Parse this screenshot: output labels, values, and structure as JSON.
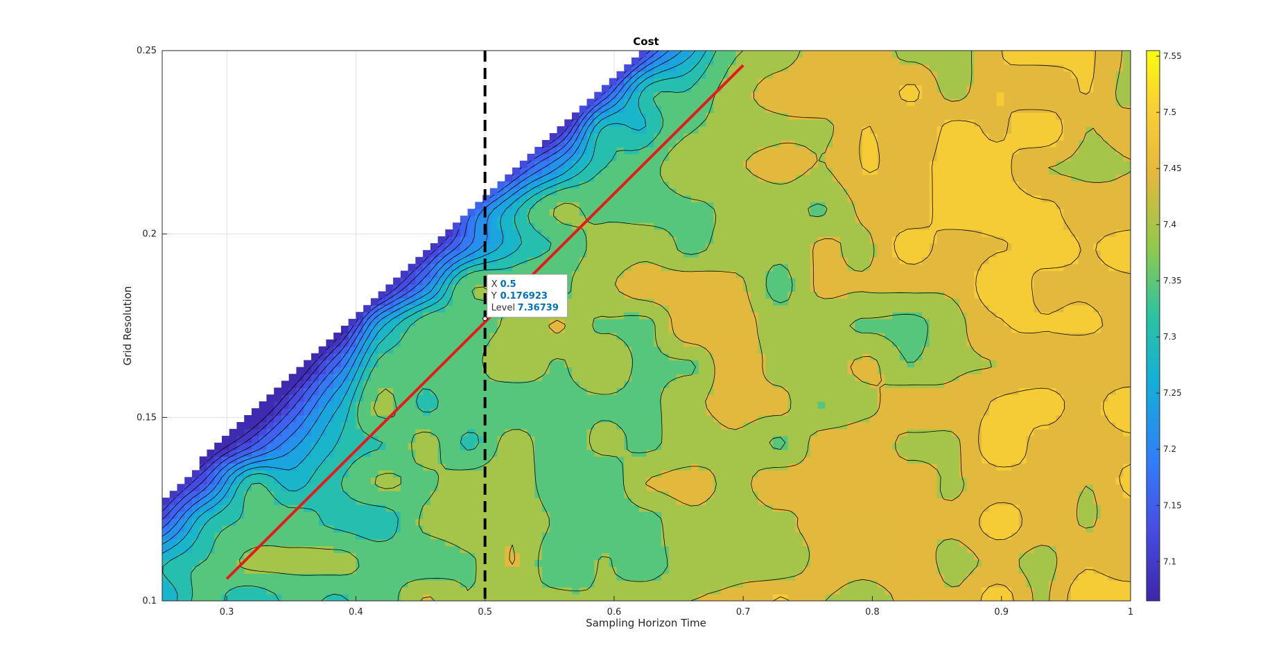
{
  "colors": {
    "background": "#ffffff",
    "grid": "#dfdfdf",
    "contour_line": "#000000",
    "fit_line": "#e41a1c",
    "dashed_line": "#000000",
    "tooltip_value": "#0072bd"
  },
  "chart_data": {
    "type": "contourf",
    "title": "Cost",
    "xlabel": "Sampling Horizon Time",
    "ylabel": "Grid Resolution",
    "xlim": [
      0.25,
      1.0
    ],
    "ylim": [
      0.1,
      0.25
    ],
    "x_ticks": [
      0.3,
      0.4,
      0.5,
      0.6,
      0.7,
      0.8,
      0.9,
      1.0
    ],
    "x_tick_labels": [
      "0.3",
      "0.4",
      "0.5",
      "0.6",
      "0.7",
      "0.8",
      "0.9",
      "1"
    ],
    "y_ticks": [
      0.1,
      0.15,
      0.2,
      0.25
    ],
    "y_tick_labels": [
      "0.1",
      "0.15",
      "0.2",
      "0.25"
    ],
    "grid": true,
    "colormap": "parula",
    "colorbar": {
      "location": "right",
      "range": [
        7.065,
        7.555
      ],
      "ticks": [
        7.1,
        7.15,
        7.2,
        7.25,
        7.3,
        7.35,
        7.4,
        7.45,
        7.5,
        7.55
      ],
      "tick_labels": [
        "7.1",
        "7.15",
        "7.2",
        "7.25",
        "7.3",
        "7.35",
        "7.4",
        "7.45",
        "7.5",
        "7.55"
      ]
    },
    "contour_levels": [
      7.08,
      7.11,
      7.14,
      7.17,
      7.2,
      7.23,
      7.26,
      7.29,
      7.32,
      7.37,
      7.42,
      7.47,
      7.52
    ],
    "undefined_region": "above boundary line from (0.25, 0.128) to (0.62, 0.25)",
    "boundary": {
      "x": [
        0.25,
        0.62
      ],
      "y": [
        0.128,
        0.25
      ]
    },
    "fit_line": {
      "x": [
        0.3,
        0.7
      ],
      "y": [
        0.106,
        0.246
      ]
    },
    "vertical_dashed_line": {
      "x": 0.5
    },
    "datatip": {
      "x": 0.5,
      "y": 0.176923,
      "level": 7.36739,
      "x_key": "X",
      "y_key": "Y",
      "level_key": "Level",
      "x_text": "0.5",
      "y_text": "0.176923",
      "level_text": "7.36739"
    }
  }
}
